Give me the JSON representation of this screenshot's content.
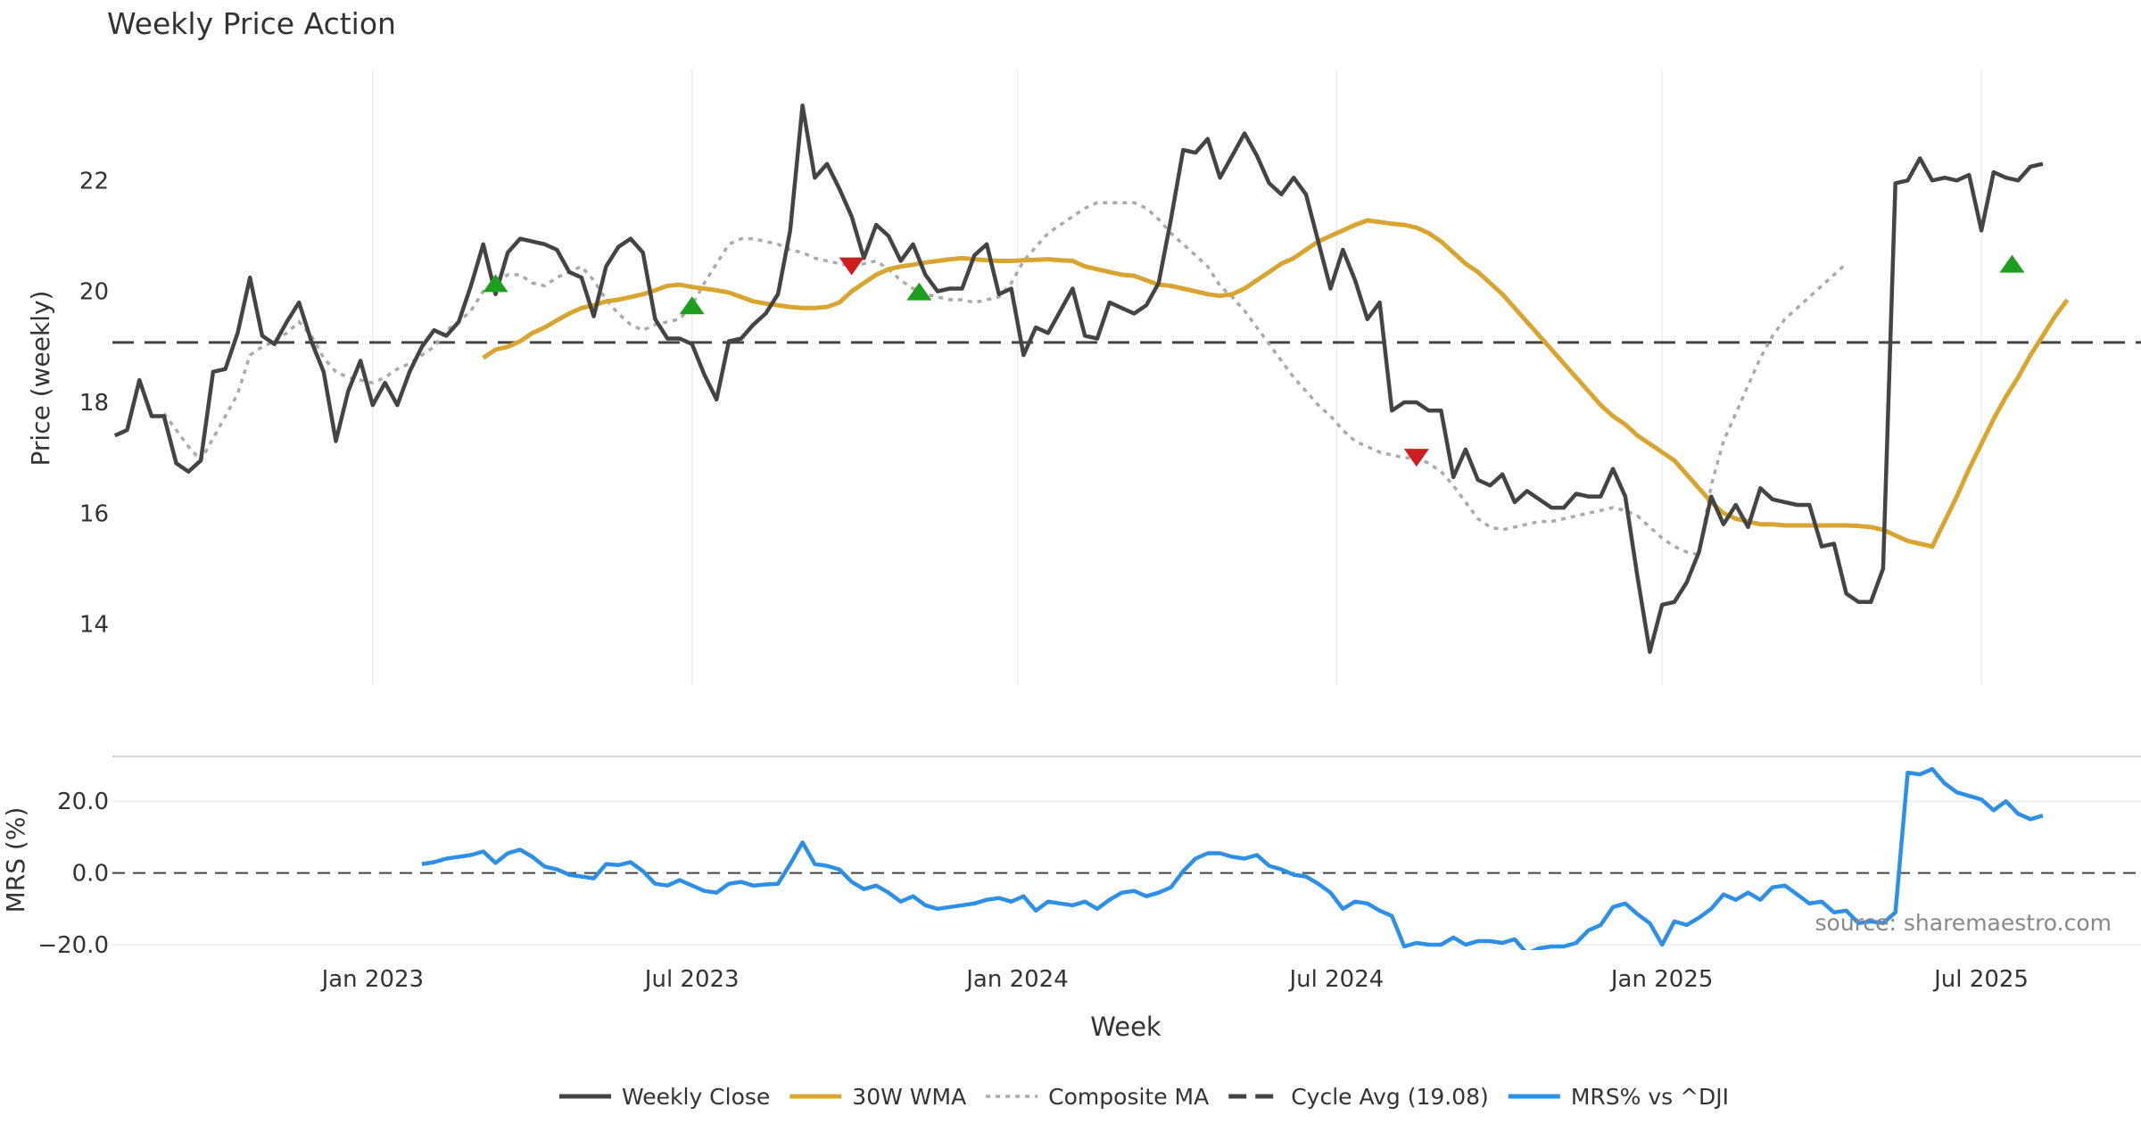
{
  "chart_data": {
    "type": "line",
    "title": "Weekly Price Action",
    "xlabel": "Week",
    "source": "source: sharemaestro.com",
    "x_ticks": [
      {
        "t": 14,
        "label": "Jan 2023"
      },
      {
        "t": 40,
        "label": "Jul 2023"
      },
      {
        "t": 66.5,
        "label": "Jan 2024"
      },
      {
        "t": 92.5,
        "label": "Jul 2024"
      },
      {
        "t": 119,
        "label": "Jan 2025"
      },
      {
        "t": 145,
        "label": "Jul 2025"
      }
    ],
    "x_range": [
      -7.2,
      158
    ],
    "price_panel": {
      "ylabel": "Price (weekly)",
      "ylim": [
        12.9,
        24.0
      ],
      "yticks": [
        "14",
        "16",
        "18",
        "20",
        "22"
      ],
      "cycle_avg": 19.08,
      "weekly_close": {
        "name": "Weekly Close",
        "t0": -7,
        "values": [
          17.4,
          17.5,
          18.4,
          17.75,
          17.75,
          16.9,
          16.75,
          16.95,
          18.55,
          18.6,
          19.25,
          20.25,
          19.2,
          19.05,
          19.45,
          19.8,
          19.1,
          18.55,
          17.3,
          18.2,
          18.75,
          17.95,
          18.35,
          17.95,
          18.55,
          19.0,
          19.3,
          19.2,
          19.45,
          20.1,
          20.85,
          19.95,
          20.7,
          20.95,
          20.9,
          20.85,
          20.75,
          20.35,
          20.25,
          19.55,
          20.45,
          20.8,
          20.95,
          20.7,
          19.5,
          19.15,
          19.15,
          19.05,
          18.5,
          18.05,
          19.1,
          19.15,
          19.4,
          19.6,
          19.95,
          21.1,
          23.35,
          22.05,
          22.3,
          21.85,
          21.35,
          20.6,
          21.2,
          21.0,
          20.55,
          20.85,
          20.3,
          20.0,
          20.05,
          20.05,
          20.65,
          20.85,
          19.95,
          20.05,
          18.85,
          19.35,
          19.25,
          19.65,
          20.05,
          19.2,
          19.15,
          19.8,
          19.7,
          19.6,
          19.75,
          20.15,
          21.3,
          22.55,
          22.5,
          22.75,
          22.05,
          22.45,
          22.85,
          22.45,
          21.95,
          21.75,
          22.05,
          21.75,
          20.9,
          20.05,
          20.75,
          20.2,
          19.5,
          19.8,
          17.85,
          18.0,
          18.0,
          17.85,
          17.85,
          16.65,
          17.15,
          16.6,
          16.5,
          16.7,
          16.2,
          16.4,
          16.25,
          16.1,
          16.1,
          16.35,
          16.3,
          16.3,
          16.8,
          16.3,
          14.85,
          13.5,
          14.35,
          14.4,
          14.75,
          15.3,
          16.3,
          15.8,
          16.15,
          15.75,
          16.45,
          16.25,
          16.2,
          16.15,
          16.15,
          15.4,
          15.45,
          14.55,
          14.4,
          14.4,
          15.0,
          21.95,
          22.0,
          22.4,
          22.0,
          22.05,
          22.0,
          22.1,
          21.1,
          22.15,
          22.05,
          22.0,
          22.25,
          22.3
        ]
      },
      "wma_30w": {
        "name": "30W WMA",
        "t0": 23,
        "values": [
          18.8,
          18.95,
          19.0,
          19.1,
          19.25,
          19.35,
          19.48,
          19.6,
          19.7,
          19.75,
          19.82,
          19.85,
          19.9,
          19.95,
          20.02,
          20.1,
          20.12,
          20.08,
          20.05,
          20.02,
          19.98,
          19.9,
          19.82,
          19.78,
          19.75,
          19.72,
          19.7,
          19.7,
          19.72,
          19.8,
          20.0,
          20.15,
          20.3,
          20.4,
          20.45,
          20.48,
          20.52,
          20.55,
          20.58,
          20.6,
          20.58,
          20.56,
          20.55,
          20.55,
          20.56,
          20.57,
          20.58,
          20.56,
          20.55,
          20.45,
          20.4,
          20.35,
          20.3,
          20.28,
          20.2,
          20.12,
          20.1,
          20.05,
          20.0,
          19.95,
          19.92,
          19.95,
          20.05,
          20.2,
          20.35,
          20.5,
          20.6,
          20.75,
          20.9,
          21.0,
          21.1,
          21.2,
          21.28,
          21.25,
          21.22,
          21.2,
          21.15,
          21.05,
          20.9,
          20.7,
          20.5,
          20.35,
          20.15,
          19.95,
          19.7,
          19.45,
          19.2,
          18.95,
          18.7,
          18.45,
          18.2,
          17.95,
          17.75,
          17.6,
          17.4,
          17.25,
          17.1,
          16.95,
          16.7,
          16.45,
          16.2,
          16.0,
          15.9,
          15.85,
          15.8,
          15.8,
          15.78,
          15.78,
          15.78,
          15.78,
          15.78,
          15.78,
          15.77,
          15.75,
          15.7,
          15.6,
          15.5,
          15.45,
          15.4,
          15.85,
          16.3,
          16.8,
          17.25,
          17.7,
          18.1,
          18.45,
          18.85,
          19.2,
          19.55,
          19.85
        ]
      },
      "composite_ma": {
        "name": "Composite MA",
        "t0": -3,
        "values": [
          17.8,
          17.5,
          17.2,
          16.95,
          17.35,
          17.75,
          18.15,
          18.85,
          19.0,
          19.1,
          19.25,
          19.45,
          19.2,
          18.8,
          18.55,
          18.45,
          18.4,
          18.35,
          18.45,
          18.6,
          18.7,
          18.85,
          19.0,
          19.3,
          19.45,
          19.65,
          20.0,
          20.15,
          20.3,
          20.3,
          20.15,
          20.1,
          20.25,
          20.35,
          20.45,
          20.2,
          19.85,
          19.6,
          19.4,
          19.3,
          19.4,
          19.45,
          19.5,
          19.75,
          20.15,
          20.5,
          20.85,
          20.95,
          20.95,
          20.9,
          20.85,
          20.75,
          20.7,
          20.6,
          20.55,
          20.5,
          20.45,
          20.5,
          20.55,
          20.4,
          20.2,
          20.05,
          19.95,
          19.9,
          19.85,
          19.85,
          19.8,
          19.85,
          19.9,
          20.15,
          20.55,
          20.8,
          21.05,
          21.2,
          21.35,
          21.5,
          21.6,
          21.6,
          21.6,
          21.6,
          21.5,
          21.3,
          21.05,
          20.85,
          20.65,
          20.45,
          20.1,
          19.9,
          19.65,
          19.35,
          19.05,
          18.75,
          18.45,
          18.2,
          17.95,
          17.75,
          17.5,
          17.3,
          17.2,
          17.1,
          17.05,
          17.0,
          17.0,
          16.9,
          16.75,
          16.5,
          16.2,
          15.9,
          15.75,
          15.7,
          15.75,
          15.8,
          15.85,
          15.85,
          15.9,
          15.95,
          16.0,
          16.05,
          16.1,
          16.05,
          15.95,
          15.75,
          15.55,
          15.4,
          15.3,
          15.25,
          16.5,
          17.3,
          17.8,
          18.3,
          18.8,
          19.2,
          19.5,
          19.7,
          19.9,
          20.1,
          20.3,
          20.5
        ]
      },
      "signals": [
        {
          "t": 24,
          "direction": "up"
        },
        {
          "t": 40,
          "direction": "up"
        },
        {
          "t": 53,
          "direction": "down"
        },
        {
          "t": 58.5,
          "direction": "up"
        },
        {
          "t": 99,
          "direction": "down"
        },
        {
          "t": 147.5,
          "direction": "up"
        }
      ]
    },
    "mrs_panel": {
      "ylabel": "MRS (%)",
      "ylim": [
        -21.5,
        32.0
      ],
      "yticks": [
        "20.0",
        "0.0",
        "−20.0"
      ],
      "series": {
        "name": "MRS% vs ^DJI",
        "t0": 18,
        "values": [
          2.5,
          3.0,
          4.0,
          4.5,
          5.0,
          6.0,
          2.8,
          5.5,
          6.5,
          4.5,
          1.8,
          1.0,
          -0.5,
          -1.0,
          -1.5,
          2.5,
          2.2,
          3.0,
          0.5,
          -3.0,
          -3.5,
          -2.0,
          -3.5,
          -5.0,
          -5.5,
          -3.0,
          -2.5,
          -3.5,
          -3.2,
          -3.0,
          2.5,
          8.5,
          2.5,
          2.0,
          1.0,
          -2.5,
          -4.5,
          -3.5,
          -5.5,
          -8.0,
          -6.5,
          -9.0,
          -10.0,
          -9.5,
          -9.0,
          -8.5,
          -7.5,
          -7.0,
          -8.0,
          -6.5,
          -10.5,
          -8.0,
          -8.5,
          -9.0,
          -8.0,
          -10.0,
          -7.5,
          -5.5,
          -5.0,
          -6.5,
          -5.5,
          -4.0,
          0.5,
          4.0,
          5.5,
          5.5,
          4.5,
          4.0,
          5.0,
          2.0,
          1.0,
          -0.5,
          -1.0,
          -3.0,
          -5.5,
          -10.0,
          -8.0,
          -8.5,
          -10.5,
          -12.0,
          -20.5,
          -19.5,
          -20.0,
          -20.0,
          -18.0,
          -20.0,
          -19.0,
          -19.0,
          -19.5,
          -18.5,
          -22.5,
          -21.0,
          -20.5,
          -20.5,
          -19.5,
          -16.0,
          -14.5,
          -9.5,
          -8.5,
          -11.5,
          -14.0,
          -20.0,
          -13.5,
          -14.5,
          -12.5,
          -10.0,
          -6.0,
          -7.5,
          -5.5,
          -7.5,
          -4.0,
          -3.5,
          -6.0,
          -8.5,
          -8.0,
          -11.0,
          -10.5,
          -14.0,
          -13.5,
          -14.0,
          -11.0,
          28.0,
          27.5,
          29.0,
          25.0,
          22.5,
          21.5,
          20.5,
          17.5,
          20.0,
          16.5,
          15.0,
          16.0
        ]
      }
    },
    "legend": [
      {
        "label": "Weekly Close",
        "color": "#444444",
        "style": "solid"
      },
      {
        "label": "30W WMA",
        "color": "#d9a530",
        "style": "solid"
      },
      {
        "label": "Composite MA",
        "color": "#aaaaaa",
        "style": "dotted"
      },
      {
        "label": "Cycle Avg (19.08)",
        "color": "#444444",
        "style": "dashed"
      },
      {
        "label": "MRS% vs ^DJI",
        "color": "#2d8fe6",
        "style": "solid"
      }
    ],
    "colors": {
      "close": "#444444",
      "wma": "#d9a530",
      "composite": "#aaaaaa",
      "cycle": "#444444",
      "mrs": "#2d8fe6",
      "signal_up": "#1e9e1e",
      "signal_down": "#cc1f1f"
    }
  }
}
